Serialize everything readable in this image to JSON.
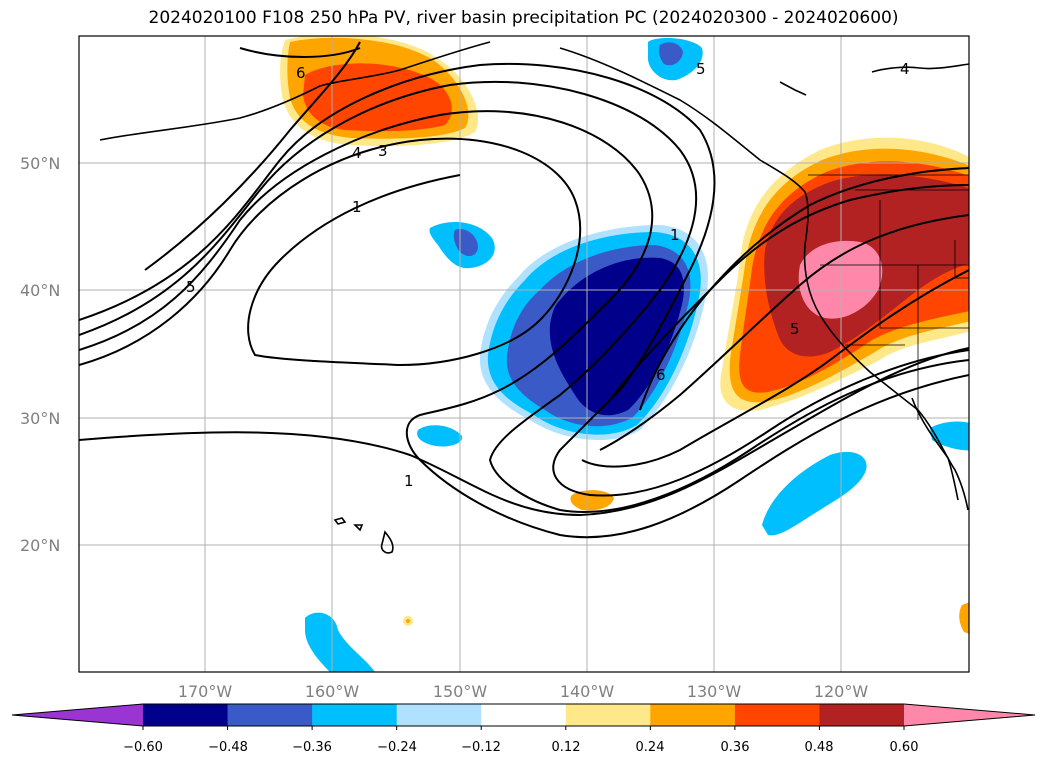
{
  "title": "2024020100 F108 250 hPa PV, river basin precipitation PC (2024020300 - 2024020600)",
  "map": {
    "lat_labels": [
      "50°N",
      "40°N",
      "30°N",
      "20°N"
    ],
    "lon_labels": [
      "170°W",
      "160°W",
      "150°W",
      "140°W",
      "130°W",
      "120°W"
    ],
    "contour_labels": [
      "6",
      "4",
      "3",
      "1",
      "5",
      "1",
      "6",
      "5",
      "1",
      "5",
      "4"
    ]
  },
  "colorbar": {
    "ticks": [
      "−0.60",
      "−0.48",
      "−0.36",
      "−0.24",
      "−0.12",
      "0.12",
      "0.24",
      "0.36",
      "0.48",
      "0.60"
    ],
    "colors": [
      "#9a35d4",
      "#00008b",
      "#3a5bc7",
      "#00bfff",
      "#b0e2ff",
      "#ffffff",
      "#ffe88a",
      "#ffa500",
      "#ff4500",
      "#b22222",
      "#ff88aa"
    ]
  }
}
